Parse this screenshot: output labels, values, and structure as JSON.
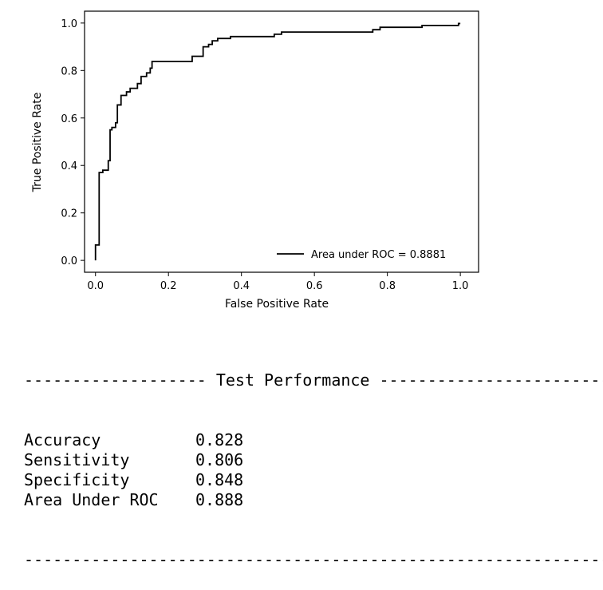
{
  "chart_data": {
    "type": "line",
    "title": "",
    "xlabel": "False Positive Rate",
    "ylabel": "True Positive Rate",
    "xlim": [
      -0.03,
      1.05
    ],
    "ylim": [
      -0.05,
      1.05
    ],
    "xticks": [
      0.0,
      0.2,
      0.4,
      0.6,
      0.8,
      1.0
    ],
    "yticks": [
      0.0,
      0.2,
      0.4,
      0.6,
      0.8,
      1.0
    ],
    "xtick_labels": [
      "0.0",
      "0.2",
      "0.4",
      "0.6",
      "0.8",
      "1.0"
    ],
    "ytick_labels": [
      "0.0",
      "0.2",
      "0.4",
      "0.6",
      "0.8",
      "1.0"
    ],
    "legend_position": "lower-right",
    "grid": false,
    "series": [
      {
        "name": "Area under ROC = 0.8881",
        "color": "#000000",
        "points": [
          [
            0.0,
            0.0
          ],
          [
            0.0,
            0.065
          ],
          [
            0.01,
            0.065
          ],
          [
            0.01,
            0.37
          ],
          [
            0.02,
            0.37
          ],
          [
            0.02,
            0.38
          ],
          [
            0.035,
            0.38
          ],
          [
            0.035,
            0.42
          ],
          [
            0.04,
            0.42
          ],
          [
            0.04,
            0.55
          ],
          [
            0.045,
            0.55
          ],
          [
            0.045,
            0.56
          ],
          [
            0.055,
            0.56
          ],
          [
            0.055,
            0.58
          ],
          [
            0.06,
            0.58
          ],
          [
            0.06,
            0.655
          ],
          [
            0.07,
            0.655
          ],
          [
            0.07,
            0.695
          ],
          [
            0.085,
            0.695
          ],
          [
            0.085,
            0.71
          ],
          [
            0.095,
            0.71
          ],
          [
            0.095,
            0.725
          ],
          [
            0.115,
            0.725
          ],
          [
            0.115,
            0.745
          ],
          [
            0.125,
            0.745
          ],
          [
            0.125,
            0.775
          ],
          [
            0.14,
            0.775
          ],
          [
            0.14,
            0.79
          ],
          [
            0.15,
            0.79
          ],
          [
            0.15,
            0.81
          ],
          [
            0.155,
            0.81
          ],
          [
            0.155,
            0.838
          ],
          [
            0.265,
            0.838
          ],
          [
            0.265,
            0.86
          ],
          [
            0.295,
            0.86
          ],
          [
            0.295,
            0.9
          ],
          [
            0.31,
            0.9
          ],
          [
            0.31,
            0.91
          ],
          [
            0.32,
            0.91
          ],
          [
            0.32,
            0.925
          ],
          [
            0.335,
            0.925
          ],
          [
            0.335,
            0.935
          ],
          [
            0.37,
            0.935
          ],
          [
            0.37,
            0.943
          ],
          [
            0.49,
            0.943
          ],
          [
            0.49,
            0.953
          ],
          [
            0.51,
            0.953
          ],
          [
            0.51,
            0.962
          ],
          [
            0.76,
            0.962
          ],
          [
            0.76,
            0.972
          ],
          [
            0.78,
            0.972
          ],
          [
            0.78,
            0.982
          ],
          [
            0.895,
            0.982
          ],
          [
            0.895,
            0.99
          ],
          [
            0.995,
            0.99
          ],
          [
            0.995,
            0.998
          ],
          [
            1.0,
            0.998
          ]
        ]
      }
    ]
  },
  "report": {
    "header_rule": "------------------- Test Performance ----------------------------------",
    "footer_rule": "------------------------------------------------------------------------------",
    "rows": [
      {
        "label": "Accuracy",
        "value": "0.828"
      },
      {
        "label": "Sensitivity",
        "value": "0.806"
      },
      {
        "label": "Specificity",
        "value": "0.848"
      },
      {
        "label": "Area Under ROC",
        "value": "0.888"
      }
    ]
  }
}
